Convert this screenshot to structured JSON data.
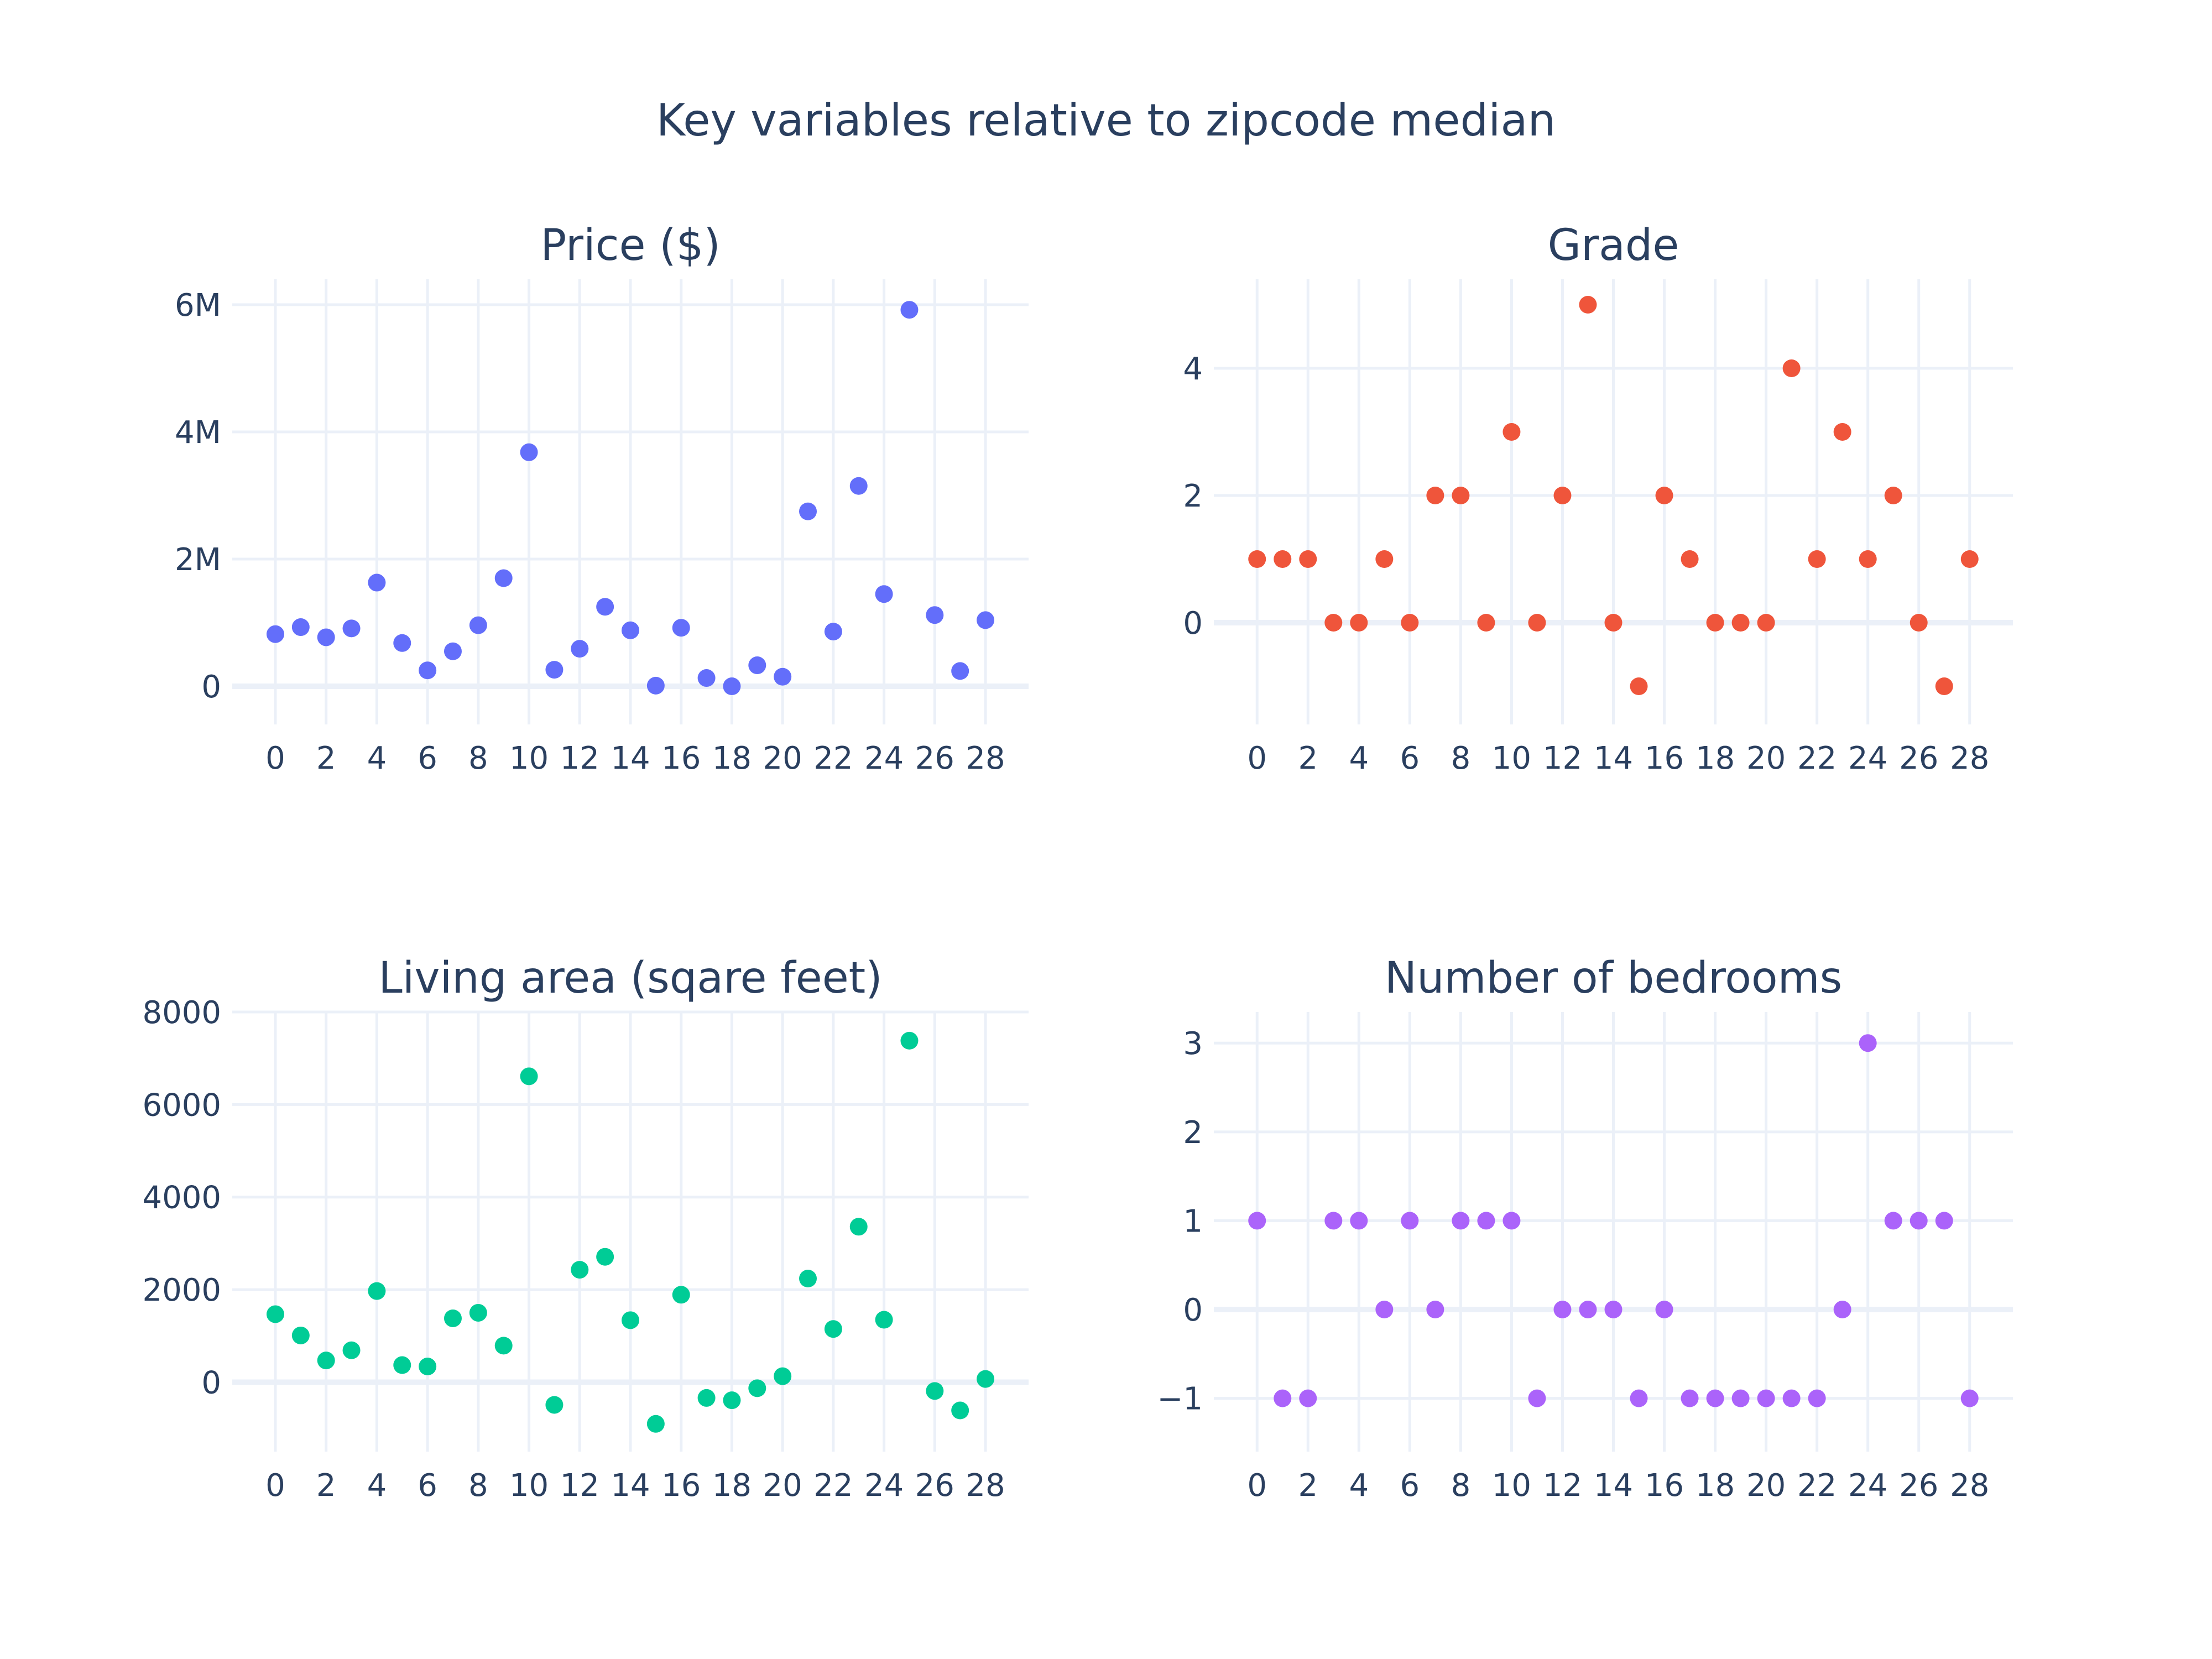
{
  "title": "Key variables relative to zipcode median",
  "chart_data": [
    {
      "type": "scatter",
      "title": "Price ($)",
      "xlabel": "",
      "ylabel": "",
      "color": "#636efa",
      "x_ticks": [
        "0",
        "2",
        "4",
        "6",
        "8",
        "10",
        "12",
        "14",
        "16",
        "18",
        "20",
        "22",
        "24",
        "26",
        "28"
      ],
      "y_ticks": [
        "0",
        "2M",
        "4M",
        "6M"
      ],
      "y_tick_values": [
        0,
        2000000,
        4000000,
        6000000
      ],
      "xlim": [
        -1.7,
        29.7
      ],
      "ylim": [
        -600000,
        6400000
      ],
      "grid": true,
      "x": [
        0,
        1,
        2,
        3,
        4,
        5,
        6,
        7,
        8,
        9,
        10,
        11,
        12,
        13,
        14,
        15,
        16,
        17,
        18,
        19,
        20,
        21,
        22,
        23,
        24,
        25,
        26,
        27,
        28
      ],
      "y": [
        820000,
        930000,
        770000,
        910000,
        1630000,
        680000,
        250000,
        550000,
        960000,
        1700000,
        3680000,
        260000,
        590000,
        1250000,
        880000,
        10000,
        920000,
        130000,
        0,
        330000,
        150000,
        2750000,
        860000,
        3150000,
        1450000,
        5920000,
        1120000,
        240000,
        1040000
      ]
    },
    {
      "type": "scatter",
      "title": "Grade",
      "xlabel": "",
      "ylabel": "",
      "color": "#ef553b",
      "x_ticks": [
        "0",
        "2",
        "4",
        "6",
        "8",
        "10",
        "12",
        "14",
        "16",
        "18",
        "20",
        "22",
        "24",
        "26",
        "28"
      ],
      "y_ticks": [
        "0",
        "2",
        "4"
      ],
      "y_tick_values": [
        0,
        2,
        4
      ],
      "xlim": [
        -1.7,
        29.7
      ],
      "ylim": [
        -1.6,
        5.4
      ],
      "grid": true,
      "x": [
        0,
        1,
        2,
        3,
        4,
        5,
        6,
        7,
        8,
        9,
        10,
        11,
        12,
        13,
        14,
        15,
        16,
        17,
        18,
        19,
        20,
        21,
        22,
        23,
        24,
        25,
        26,
        27,
        28
      ],
      "y": [
        1,
        1,
        1,
        0,
        0,
        1,
        0,
        2,
        2,
        0,
        3,
        0,
        2,
        5,
        0,
        -1,
        2,
        1,
        0,
        0,
        0,
        4,
        1,
        3,
        1,
        2,
        0,
        -1,
        1
      ]
    },
    {
      "type": "scatter",
      "title": "Living area (sqare feet)",
      "xlabel": "",
      "ylabel": "",
      "color": "#00cc96",
      "x_ticks": [
        "0",
        "2",
        "4",
        "6",
        "8",
        "10",
        "12",
        "14",
        "16",
        "18",
        "20",
        "22",
        "24",
        "26",
        "28"
      ],
      "y_ticks": [
        "0",
        "2000",
        "4000",
        "6000",
        "8000"
      ],
      "y_tick_values": [
        0,
        2000,
        4000,
        6000,
        8000
      ],
      "xlim": [
        -1.7,
        29.7
      ],
      "ylim": [
        -1500,
        8000
      ],
      "grid": true,
      "x": [
        0,
        1,
        2,
        3,
        4,
        5,
        6,
        7,
        8,
        9,
        10,
        11,
        12,
        13,
        14,
        15,
        16,
        17,
        18,
        19,
        20,
        21,
        22,
        23,
        24,
        25,
        26,
        27,
        28
      ],
      "y": [
        1470,
        1010,
        470,
        690,
        1970,
        370,
        340,
        1380,
        1500,
        790,
        6610,
        -490,
        2430,
        2710,
        1340,
        -900,
        1890,
        -340,
        -390,
        -130,
        130,
        2240,
        1150,
        3360,
        1350,
        7380,
        -190,
        -610,
        70
      ]
    },
    {
      "type": "scatter",
      "title": "Number of bedrooms",
      "xlabel": "",
      "ylabel": "",
      "color": "#ab63fa",
      "x_ticks": [
        "0",
        "2",
        "4",
        "6",
        "8",
        "10",
        "12",
        "14",
        "16",
        "18",
        "20",
        "22",
        "24",
        "26",
        "28"
      ],
      "y_ticks": [
        "−1",
        "0",
        "1",
        "2",
        "3"
      ],
      "y_tick_values": [
        -1,
        0,
        1,
        2,
        3
      ],
      "xlim": [
        -1.7,
        29.7
      ],
      "ylim": [
        -1.6,
        3.35
      ],
      "grid": true,
      "x": [
        0,
        1,
        2,
        3,
        4,
        5,
        6,
        7,
        8,
        9,
        10,
        11,
        12,
        13,
        14,
        15,
        16,
        17,
        18,
        19,
        20,
        21,
        22,
        23,
        24,
        25,
        26,
        27,
        28
      ],
      "y": [
        1,
        -1,
        -1,
        1,
        1,
        0,
        1,
        0,
        1,
        1,
        1,
        -1,
        0,
        0,
        0,
        -1,
        0,
        -1,
        -1,
        -1,
        -1,
        -1,
        -1,
        0,
        3,
        1,
        1,
        1,
        -1
      ]
    }
  ]
}
